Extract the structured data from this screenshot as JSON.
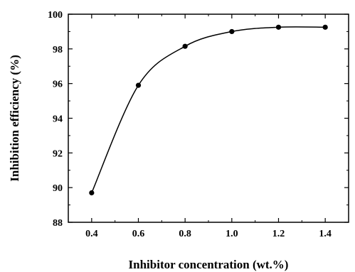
{
  "chart_data": {
    "type": "line",
    "title": "",
    "xlabel": "Inhibitor concentration (wt.%)",
    "ylabel": "Inhibition efficiency (%)",
    "xlim": [
      0.3,
      1.5
    ],
    "ylim": [
      88,
      100
    ],
    "x_ticks": [
      "0.4",
      "0.6",
      "0.8",
      "1.0",
      "1.2",
      "1.4"
    ],
    "y_ticks": [
      "88",
      "90",
      "92",
      "94",
      "96",
      "98",
      "100"
    ],
    "series": [
      {
        "x": [
          0.4,
          0.6,
          0.8,
          1.0,
          1.2,
          1.4
        ],
        "y": [
          89.7,
          95.9,
          98.15,
          99.0,
          99.25,
          99.25
        ],
        "marker": "circle",
        "smooth": true,
        "color": "#000000"
      }
    ],
    "grid": false,
    "legend": "none"
  }
}
